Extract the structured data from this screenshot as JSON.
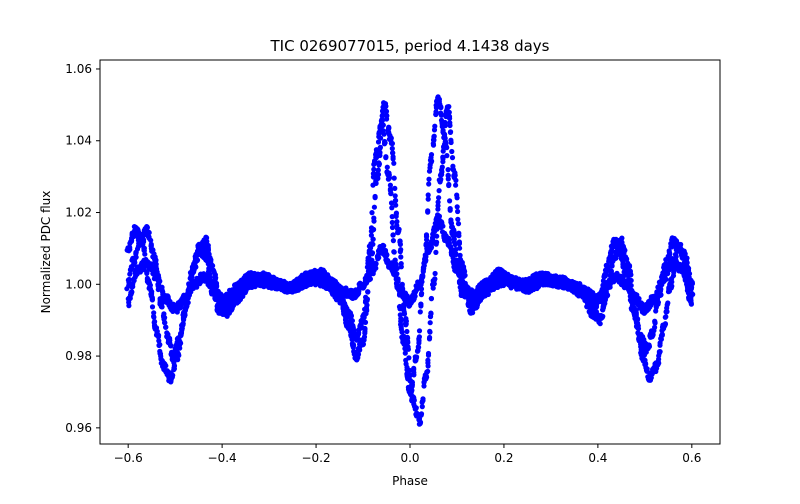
{
  "chart_data": {
    "type": "scatter",
    "title": "TIC 0269077015, period 4.1438 days",
    "xlabel": "Phase",
    "ylabel": "Normalized PDC flux",
    "xlim": [
      -0.66,
      0.66
    ],
    "ylim": [
      0.9555,
      1.0625
    ],
    "x_ticks": [
      -0.6,
      -0.4,
      -0.2,
      0.0,
      0.2,
      0.4,
      0.6
    ],
    "x_tick_labels": [
      "−0.6",
      "−0.4",
      "−0.2",
      "0.0",
      "0.2",
      "0.4",
      "0.6"
    ],
    "y_ticks": [
      0.96,
      0.98,
      1.0,
      1.02,
      1.04,
      1.06
    ],
    "y_tick_labels": [
      "0.96",
      "0.98",
      "1.00",
      "1.02",
      "1.04",
      "1.06"
    ],
    "grid": false,
    "legend": null,
    "marker_color": "#0000ff",
    "x_range": [
      -0.6,
      0.6
    ],
    "series_shapes": [
      {
        "x": [
          -0.6,
          -0.59,
          -0.575,
          -0.56,
          -0.545,
          -0.53,
          -0.515,
          -0.505,
          -0.49,
          -0.475,
          -0.46,
          -0.445,
          -0.435,
          -0.42,
          -0.405,
          -0.39,
          -0.37,
          -0.34,
          -0.31,
          -0.28,
          -0.25,
          -0.22,
          -0.19,
          -0.16,
          -0.13,
          -0.115,
          -0.1,
          -0.085,
          -0.075,
          -0.06,
          -0.045,
          -0.03,
          -0.015,
          0.0,
          0.015,
          0.03,
          0.045,
          0.06,
          0.075,
          0.09,
          0.11,
          0.13,
          0.16,
          0.19,
          0.22,
          0.25,
          0.28,
          0.31,
          0.34,
          0.37,
          0.39,
          0.405,
          0.42,
          0.435,
          0.445,
          0.46,
          0.475,
          0.49,
          0.505,
          0.515,
          0.53,
          0.545,
          0.56,
          0.575,
          0.59,
          0.6
        ],
        "y": [
          1.0,
          1.006,
          1.012,
          1.015,
          1.008,
          0.995,
          0.985,
          0.98,
          0.985,
          0.995,
          1.005,
          1.01,
          1.012,
          1.005,
          0.995,
          0.992,
          0.996,
          1.0,
          1.002,
          1.0,
          0.999,
          1.002,
          1.003,
          1.0,
          0.992,
          0.985,
          0.99,
          1.01,
          1.035,
          1.045,
          1.03,
          1.005,
          0.985,
          0.97,
          0.98,
          1.005,
          1.035,
          1.052,
          1.04,
          1.015,
          0.998,
          0.996,
          1.0,
          1.003,
          1.0,
          0.999,
          1.002,
          1.001,
          1.0,
          0.997,
          0.994,
          0.996,
          1.005,
          1.012,
          1.01,
          1.003,
          0.993,
          0.985,
          0.982,
          0.986,
          0.996,
          1.006,
          1.012,
          1.01,
          1.004,
          0.998
        ]
      },
      {
        "x": [
          -0.6,
          -0.585,
          -0.57,
          -0.555,
          -0.54,
          -0.525,
          -0.51,
          -0.495,
          -0.48,
          -0.465,
          -0.45,
          -0.435,
          -0.42,
          -0.405,
          -0.39,
          -0.37,
          -0.34,
          -0.3,
          -0.26,
          -0.22,
          -0.18,
          -0.15,
          -0.13,
          -0.115,
          -0.1,
          -0.085,
          -0.07,
          -0.055,
          -0.04,
          -0.025,
          -0.01,
          0.005,
          0.02,
          0.035,
          0.05,
          0.065,
          0.08,
          0.095,
          0.11,
          0.13,
          0.16,
          0.2,
          0.24,
          0.28,
          0.32,
          0.36,
          0.39,
          0.405,
          0.42,
          0.435,
          0.45,
          0.465,
          0.48,
          0.495,
          0.51,
          0.525,
          0.54,
          0.555,
          0.57,
          0.585,
          0.6
        ],
        "y": [
          1.01,
          1.015,
          1.012,
          1.0,
          0.987,
          0.977,
          0.974,
          0.98,
          0.992,
          1.003,
          1.01,
          1.008,
          0.998,
          0.992,
          0.994,
          0.999,
          1.002,
          1.001,
          0.999,
          1.002,
          1.001,
          0.996,
          0.988,
          0.98,
          0.984,
          1.002,
          1.03,
          1.05,
          1.04,
          1.015,
          0.99,
          0.968,
          0.962,
          0.975,
          1.0,
          1.03,
          1.05,
          1.03,
          1.005,
          0.993,
          0.998,
          1.002,
          1.0,
          1.002,
          1.001,
          0.999,
          0.992,
          0.99,
          0.998,
          1.008,
          1.012,
          1.005,
          0.992,
          0.98,
          0.974,
          0.977,
          0.988,
          1.0,
          1.01,
          1.008,
          1.0
        ]
      },
      {
        "x": [
          -0.6,
          -0.58,
          -0.56,
          -0.54,
          -0.52,
          -0.5,
          -0.48,
          -0.46,
          -0.44,
          -0.42,
          -0.4,
          -0.37,
          -0.33,
          -0.29,
          -0.25,
          -0.21,
          -0.17,
          -0.14,
          -0.12,
          -0.1,
          -0.08,
          -0.06,
          -0.04,
          -0.02,
          0.0,
          0.02,
          0.04,
          0.06,
          0.08,
          0.1,
          0.12,
          0.14,
          0.17,
          0.21,
          0.25,
          0.29,
          0.33,
          0.37,
          0.4,
          0.42,
          0.44,
          0.46,
          0.48,
          0.5,
          0.52,
          0.54,
          0.56,
          0.58,
          0.6
        ],
        "y": [
          0.995,
          1.004,
          1.006,
          1.002,
          0.996,
          0.993,
          0.996,
          1.0,
          1.002,
          1.0,
          0.996,
          0.998,
          1.001,
          1.0,
          0.999,
          1.001,
          1.0,
          0.998,
          0.997,
          1.0,
          1.004,
          1.01,
          1.005,
          0.998,
          0.995,
          1.0,
          1.01,
          1.018,
          1.012,
          1.004,
          0.998,
          0.997,
          1.0,
          1.001,
          0.999,
          1.001,
          1.0,
          0.998,
          0.996,
          1.0,
          1.002,
          1.0,
          0.996,
          0.993,
          0.996,
          1.002,
          1.006,
          1.004,
          0.995
        ]
      }
    ]
  }
}
